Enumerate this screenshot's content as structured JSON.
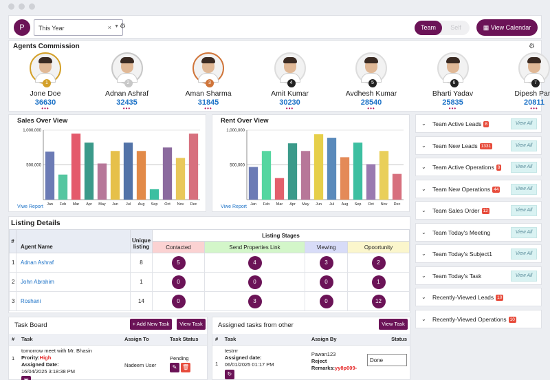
{
  "topbar": {
    "avatar_letter": "P",
    "period_value": "This Year",
    "clear": "×",
    "caret": "▼",
    "toggle_on": "Team",
    "toggle_off": "Self",
    "calendar_button": "View Calendar",
    "calendar_icon": "▦",
    "gear": "⚙"
  },
  "commission": {
    "title": "Agents Commission",
    "agents": [
      {
        "name": "Jone Doe",
        "score": "36630",
        "rank": "1",
        "ring": "#d4a028"
      },
      {
        "name": "Adnan Ashraf",
        "score": "32435",
        "rank": "2",
        "ring": "#c8c8c8"
      },
      {
        "name": "Aman Sharma",
        "score": "31845",
        "rank": "3",
        "ring": "#d0753a"
      },
      {
        "name": "Amit Kumar",
        "score": "30230",
        "rank": "4",
        "ring": "#dddddd"
      },
      {
        "name": "Avdhesh Kumar",
        "score": "28540",
        "rank": "5",
        "ring": "#dddddd"
      },
      {
        "name": "Bharti Yadav",
        "score": "25835",
        "rank": "6",
        "ring": "#dddddd"
      },
      {
        "name": "Dipesh Pant",
        "score": "20811",
        "rank": "7",
        "ring": "#dddddd"
      }
    ],
    "dots": "•••"
  },
  "chart_data": [
    {
      "type": "bar",
      "title": "Sales Over View",
      "categories": [
        "Jan",
        "Feb",
        "Mar",
        "Apr",
        "May",
        "Jun",
        "Jul",
        "Aug",
        "Sep",
        "Oct",
        "Nov",
        "Dec"
      ],
      "values": [
        690000,
        360000,
        950000,
        820000,
        520000,
        700000,
        820000,
        700000,
        150000,
        750000,
        600000,
        950000
      ],
      "colors": [
        "#6c7bb5",
        "#55c6a0",
        "#e45a6c",
        "#3b9a8a",
        "#b77799",
        "#e6c04a",
        "#5273a8",
        "#e28a48",
        "#3dbfa1",
        "#8b6a9e",
        "#e9c85a",
        "#d7707e"
      ],
      "ylim": [
        0,
        1000000
      ],
      "yticks": [
        "1,000,000",
        "500,000"
      ],
      "link": "Viwe Report"
    },
    {
      "type": "bar",
      "title": "Rent Over View",
      "categories": [
        "Jan",
        "Feb",
        "Mar",
        "Apr",
        "May",
        "Jun",
        "Jul",
        "Aug",
        "Sep",
        "Oct",
        "Nov",
        "Dec"
      ],
      "values": [
        470000,
        700000,
        310000,
        810000,
        700000,
        940000,
        890000,
        610000,
        820000,
        510000,
        700000,
        370000
      ],
      "colors": [
        "#6c7bb5",
        "#55d6a0",
        "#e3606c",
        "#3b9a8a",
        "#b77799",
        "#e6cf4a",
        "#5a8abb",
        "#e48a58",
        "#3dbfa1",
        "#9a7ab0",
        "#e9cf5a",
        "#d7707e"
      ],
      "ylim": [
        0,
        1000000
      ],
      "yticks": [
        "1,000,000",
        "500,000"
      ],
      "link": "Viwe Report"
    }
  ],
  "listing": {
    "title": "Listing Details",
    "headers": {
      "idx": "#",
      "agent": "Agent Name",
      "unique": "Unique listing",
      "stages": "Listing Stages",
      "contacted": "Contacted",
      "send": "Send Properties Link",
      "viewing": "Viewing",
      "opportunity": "Opoortunity"
    },
    "rows": [
      {
        "idx": "1",
        "agent": "Adnan Ashraf",
        "unique": "8",
        "contacted": "5",
        "send": "4",
        "viewing": "3",
        "opportunity": "2"
      },
      {
        "idx": "2",
        "agent": "John Abrahim",
        "unique": "1",
        "contacted": "0",
        "send": "0",
        "viewing": "0",
        "opportunity": "1"
      },
      {
        "idx": "3",
        "agent": "Roshani",
        "unique": "14",
        "contacted": "0",
        "send": "3",
        "viewing": "0",
        "opportunity": "12"
      }
    ]
  },
  "sidebar": {
    "view_all": "View All",
    "chevron": "⌄",
    "items": [
      {
        "label": "Team Active Leads",
        "badge": "8",
        "view": true
      },
      {
        "label": "Team New Leads",
        "badge": "1331",
        "view": true
      },
      {
        "label": "Team Active Operations",
        "badge": "8",
        "view": true
      },
      {
        "label": "Team New Operations",
        "badge": "44",
        "view": true
      },
      {
        "label": "Team Sales Order",
        "badge": "12",
        "view": true
      },
      {
        "label": "Team Today's Meeting",
        "badge": "",
        "view": true
      },
      {
        "label": "Team Today's Subject1",
        "badge": "",
        "view": true
      },
      {
        "label": "Team Today's Task",
        "badge": "",
        "view": true
      },
      {
        "label": "Recently-Viewed Leads",
        "badge": "10",
        "view": false
      },
      {
        "label": "Recently-Viewed Operations",
        "badge": "10",
        "view": false
      }
    ]
  },
  "taskboard": {
    "title": "Task Board",
    "add_button": "+ Add New Task",
    "view_button": "View Task",
    "headers": {
      "idx": "#",
      "task": "Task",
      "assign": "Assign To",
      "status": "Task Status"
    },
    "row": {
      "idx": "1",
      "task": "tomorrow meet with Mr. Bhasin",
      "priority_label": "Prority:",
      "priority": "High",
      "date_label": "Assigned Date:",
      "date": "16/04/2025 3:18:38 PM",
      "assign": "Nadeem User",
      "status": "Pending"
    }
  },
  "assigned": {
    "title": "Assigned tasks from other",
    "view_button": "View Task",
    "headers": {
      "idx": "#",
      "task": "Task",
      "by": "Assign By",
      "status": "Status"
    },
    "row": {
      "idx": "1",
      "task": "testrrr",
      "date_label": "Assigned date:",
      "date": "06/01/2025 01:17 PM",
      "by": "Pawan123",
      "reject_label": "Reject Remarks:",
      "reject": "yy8p009-",
      "status": "Done"
    }
  }
}
